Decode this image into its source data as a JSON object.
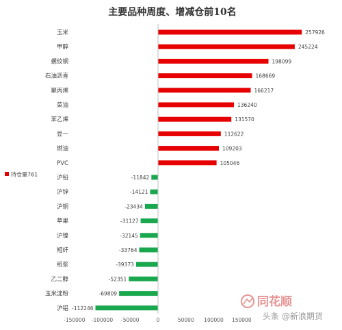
{
  "chart_data": {
    "type": "bar",
    "orientation": "horizontal",
    "title": "主要品种周度、增减仓前10名",
    "categories": [
      "玉米",
      "甲醇",
      "螺纹钢",
      "石油沥青",
      "聚丙烯",
      "菜油",
      "苯乙烯",
      "豆一",
      "燃油",
      "PVC",
      "沪铅",
      "沪锌",
      "沪铜",
      "苹果",
      "沪镍",
      "短纤",
      "纸浆",
      "乙二醇",
      "玉米淀粉",
      "沪铝"
    ],
    "series": [
      {
        "name": "持仓量761",
        "values": [
          257926,
          245224,
          198099,
          168669,
          166217,
          136240,
          131570,
          112622,
          109203,
          105046,
          -11842,
          -14121,
          -23434,
          -31127,
          -32145,
          -33764,
          -39373,
          -52351,
          -69809,
          -112246
        ],
        "positive_color": "#e60000",
        "negative_color": "#1aa84f"
      }
    ],
    "xlim": [
      -150000,
      300000
    ],
    "xticks": [
      -150000,
      -100000,
      -50000,
      0,
      50000,
      100000,
      150000
    ],
    "xtick_labels": [
      "-150000",
      "-100000",
      "-50000",
      "0",
      "50000",
      "100000",
      "150000"
    ],
    "grid": false,
    "legend_position": "left",
    "xlabel": "",
    "ylabel": ""
  },
  "watermark": {
    "brand": "同花顺",
    "credit": "头条 @新浪期货"
  }
}
